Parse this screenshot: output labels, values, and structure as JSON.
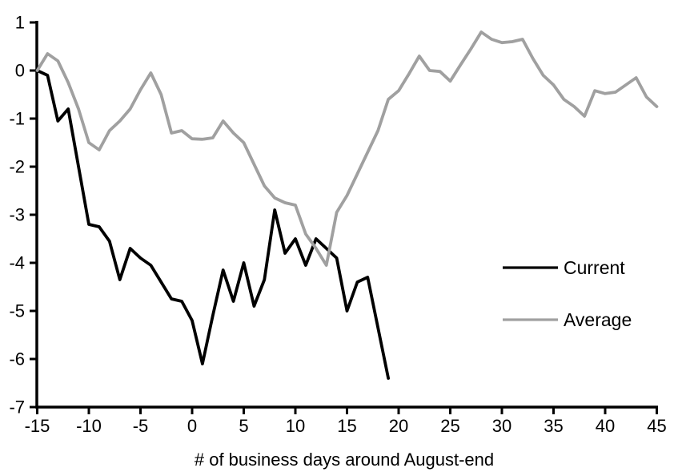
{
  "chart_data": {
    "type": "line",
    "title": "",
    "xlabel": "# of business days around August-end",
    "ylabel": "",
    "xlim": [
      -15,
      45
    ],
    "ylim": [
      -7,
      1
    ],
    "x_ticks": [
      -15,
      -10,
      -5,
      0,
      5,
      10,
      15,
      20,
      25,
      30,
      35,
      40,
      45
    ],
    "y_ticks": [
      1,
      0,
      -1,
      -2,
      -3,
      -4,
      -5,
      -6,
      -7
    ],
    "grid": false,
    "legend_position": "right-middle",
    "axis_color": "#000000",
    "series": [
      {
        "name": "Current",
        "color": "#000000",
        "x": [
          -15,
          -14,
          -13,
          -12,
          -11,
          -10,
          -9,
          -8,
          -7,
          -6,
          -5,
          -4,
          -3,
          -2,
          -1,
          0,
          1,
          2,
          3,
          4,
          5,
          6,
          7,
          8,
          9,
          10,
          11,
          12,
          13,
          14,
          15,
          16,
          17,
          18,
          19
        ],
        "values": [
          0.0,
          -0.1,
          -1.05,
          -0.8,
          -2.0,
          -3.2,
          -3.25,
          -3.55,
          -4.35,
          -3.7,
          -3.9,
          -4.05,
          -4.4,
          -4.75,
          -4.8,
          -5.2,
          -6.1,
          -5.1,
          -4.15,
          -4.8,
          -4.0,
          -4.9,
          -4.35,
          -2.9,
          -3.8,
          -3.5,
          -4.05,
          -3.5,
          -3.7,
          -3.9,
          -5.0,
          -4.4,
          -4.3,
          -5.35,
          -6.4
        ]
      },
      {
        "name": "Average",
        "color": "#A0A0A0",
        "x": [
          -15,
          -14,
          -13,
          -12,
          -11,
          -10,
          -9,
          -8,
          -7,
          -6,
          -5,
          -4,
          -3,
          -2,
          -1,
          0,
          1,
          2,
          3,
          4,
          5,
          6,
          7,
          8,
          9,
          10,
          11,
          12,
          13,
          14,
          15,
          16,
          17,
          18,
          19,
          20,
          21,
          22,
          23,
          24,
          25,
          26,
          27,
          28,
          29,
          30,
          31,
          32,
          33,
          34,
          35,
          36,
          37,
          38,
          39,
          40,
          41,
          42,
          43,
          44,
          45
        ],
        "values": [
          0.0,
          0.35,
          0.2,
          -0.25,
          -0.8,
          -1.5,
          -1.65,
          -1.25,
          -1.05,
          -0.8,
          -0.4,
          -0.05,
          -0.5,
          -1.3,
          -1.25,
          -1.42,
          -1.43,
          -1.4,
          -1.05,
          -1.3,
          -1.5,
          -1.95,
          -2.4,
          -2.65,
          -2.75,
          -2.8,
          -3.4,
          -3.7,
          -4.05,
          -2.95,
          -2.6,
          -2.15,
          -1.7,
          -1.25,
          -0.6,
          -0.42,
          -0.07,
          0.3,
          0.0,
          -0.02,
          -0.22,
          0.12,
          0.45,
          0.8,
          0.65,
          0.58,
          0.6,
          0.65,
          0.25,
          -0.1,
          -0.3,
          -0.6,
          -0.75,
          -0.95,
          -0.42,
          -0.48,
          -0.45,
          -0.3,
          -0.15,
          -0.55,
          -0.75
        ]
      }
    ]
  }
}
